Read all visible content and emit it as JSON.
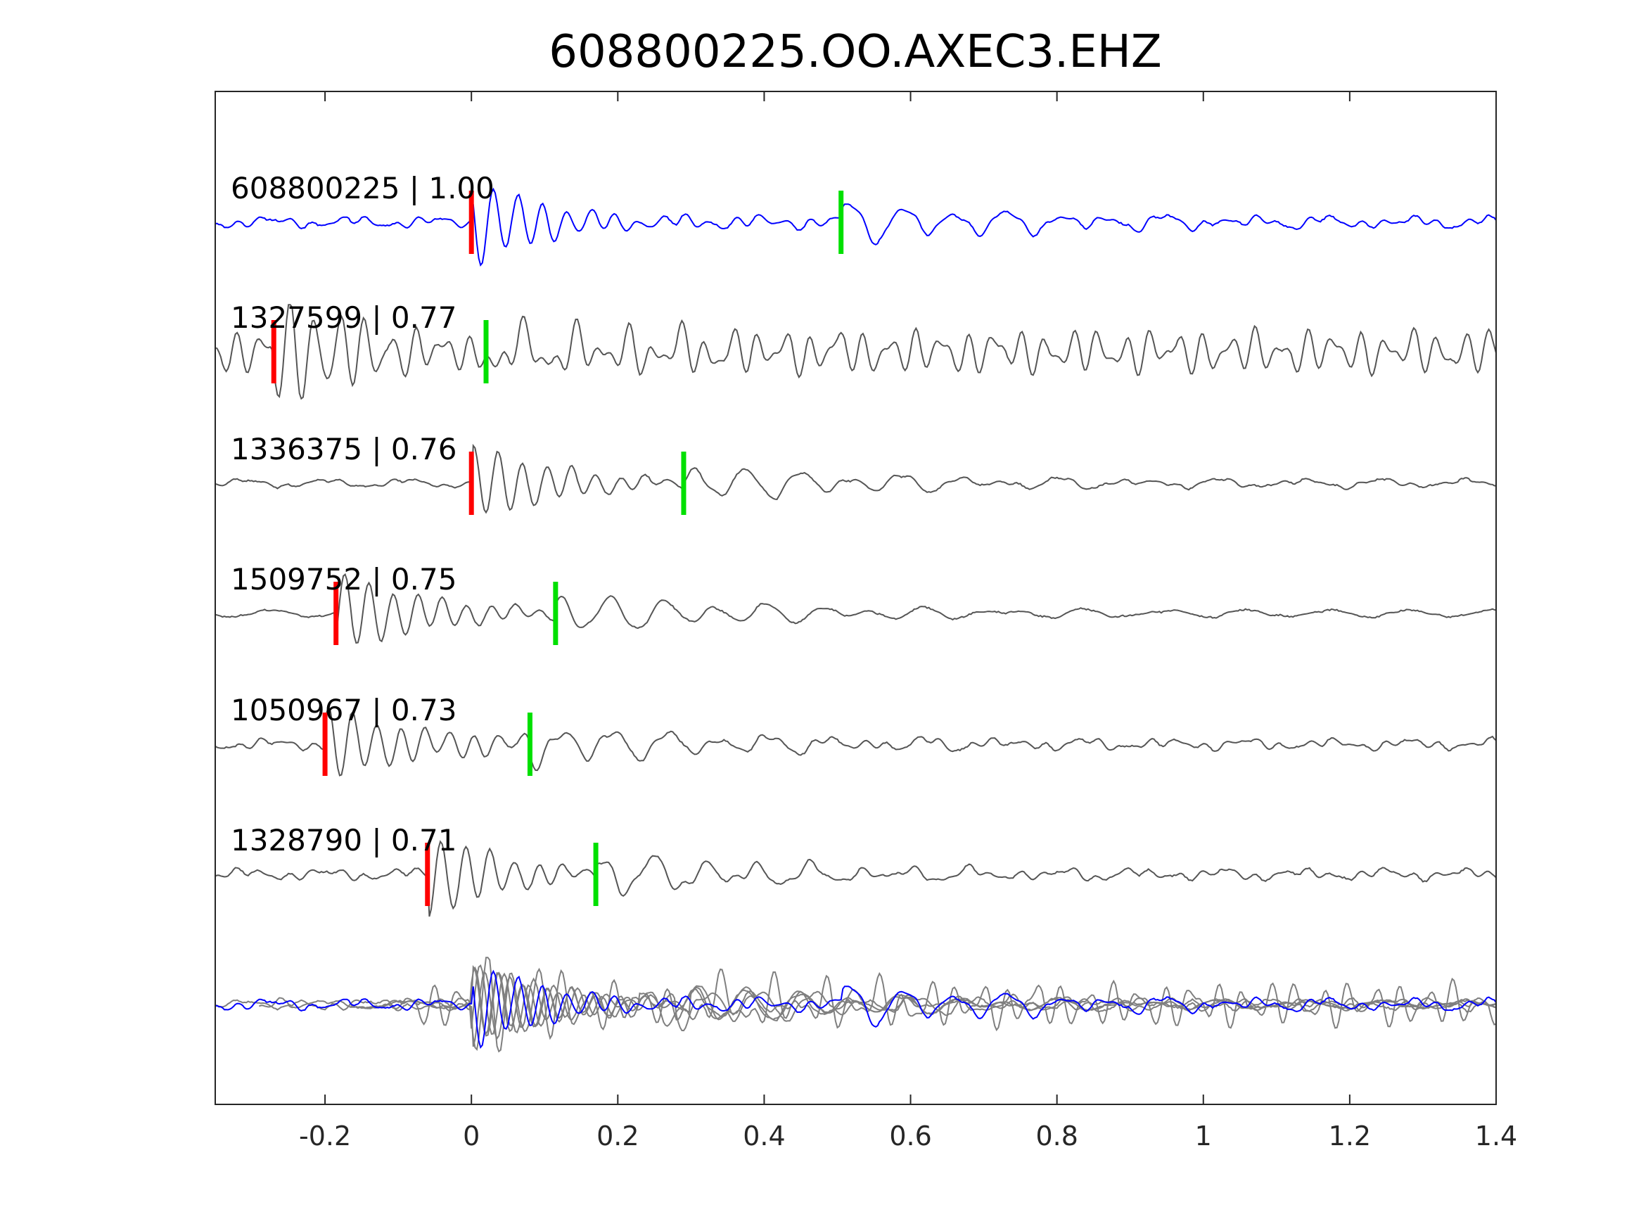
{
  "chart_data": {
    "type": "line",
    "title": "608800225.OO.AXEC3.EHZ",
    "xlabel": "",
    "ylabel": "",
    "xlim": [
      -0.35,
      1.4
    ],
    "x_ticks": [
      -0.2,
      0,
      0.2,
      0.4,
      0.6,
      0.8,
      1,
      1.2,
      1.4
    ],
    "x_tick_labels": [
      "-0.2",
      "0",
      "0.2",
      "0.4",
      "0.6",
      "0.8",
      "1",
      "1.2",
      "1.4"
    ],
    "grid": false,
    "colors": {
      "template": "#0000ff",
      "matched": "#555555",
      "overlay": "#7f7f7f",
      "p_pick": "#ff0000",
      "s_pick": "#00e000",
      "axes": "#262626"
    },
    "traces": [
      {
        "event_id": "608800225",
        "cc": "1.00",
        "label": "608800225 | 1.00",
        "p_pick": 0.0,
        "s_pick": 0.505,
        "color": "#0000ff",
        "seed": 11,
        "noise": 0.1,
        "amp": 1.0
      },
      {
        "event_id": "1327599",
        "cc": "0.77",
        "label": "1327599 | 0.77",
        "p_pick": -0.27,
        "s_pick": 0.02,
        "color": "#555555",
        "seed": 23,
        "noise": 0.55,
        "amp": 0.9
      },
      {
        "event_id": "1336375",
        "cc": "0.76",
        "label": "1336375 | 0.76",
        "p_pick": 0.0,
        "s_pick": 0.29,
        "color": "#555555",
        "seed": 37,
        "noise": 0.05,
        "amp": 0.9
      },
      {
        "event_id": "1509752",
        "cc": "0.75",
        "label": "1509752 | 0.75",
        "p_pick": -0.185,
        "s_pick": 0.115,
        "color": "#555555",
        "seed": 41,
        "noise": 0.02,
        "amp": 1.0
      },
      {
        "event_id": "1050967",
        "cc": "0.73",
        "label": "1050967 | 0.73",
        "p_pick": -0.2,
        "s_pick": 0.08,
        "color": "#555555",
        "seed": 53,
        "noise": 0.1,
        "amp": 1.0
      },
      {
        "event_id": "1328790",
        "cc": "0.71",
        "label": "1328790 | 0.71",
        "p_pick": -0.06,
        "s_pick": 0.17,
        "color": "#555555",
        "seed": 67,
        "noise": 0.1,
        "amp": 1.0
      }
    ]
  }
}
